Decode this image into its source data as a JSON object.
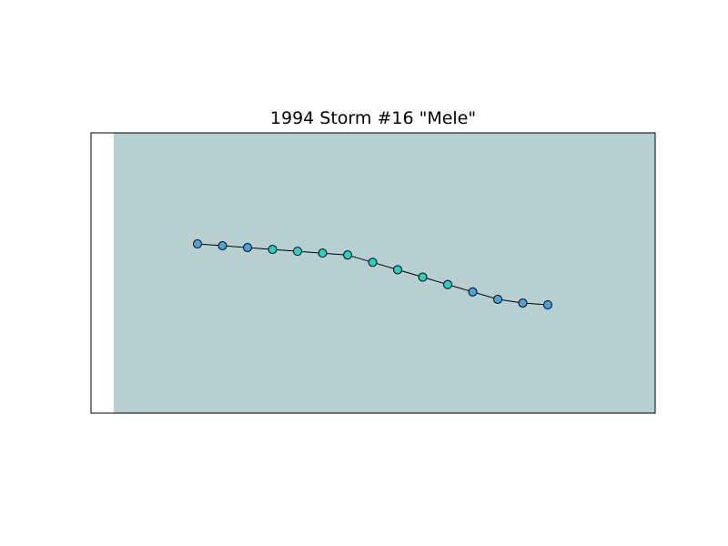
{
  "chart_data": {
    "type": "scatter",
    "title": "1994 Storm #16 \"Mele\"",
    "xlabel": "",
    "ylabel": "",
    "grid": false,
    "legend": "none",
    "track_line": true,
    "colors": {
      "ocean": "#b6d0d2",
      "land": "#ffffff",
      "track": "#000000",
      "marker_edge": "#000000"
    },
    "category_colors": {
      "A": "#4aa3df",
      "B": "#23d3c8"
    },
    "series": [
      {
        "points": [
          {
            "x": 1,
            "y": 53.5,
            "category": "A"
          },
          {
            "x": 2,
            "y": 53.0,
            "category": "A"
          },
          {
            "x": 3,
            "y": 52.5,
            "category": "A"
          },
          {
            "x": 4,
            "y": 52.0,
            "category": "B"
          },
          {
            "x": 5,
            "y": 51.5,
            "category": "B"
          },
          {
            "x": 6,
            "y": 51.0,
            "category": "B"
          },
          {
            "x": 7,
            "y": 50.5,
            "category": "B"
          },
          {
            "x": 8,
            "y": 48.5,
            "category": "B"
          },
          {
            "x": 9,
            "y": 46.5,
            "category": "B"
          },
          {
            "x": 10,
            "y": 44.5,
            "category": "B"
          },
          {
            "x": 11,
            "y": 42.5,
            "category": "B"
          },
          {
            "x": 12,
            "y": 40.5,
            "category": "A"
          },
          {
            "x": 13,
            "y": 38.5,
            "category": "A"
          },
          {
            "x": 14,
            "y": 37.5,
            "category": "A"
          },
          {
            "x": 15,
            "y": 37.0,
            "category": "A"
          }
        ]
      }
    ]
  }
}
